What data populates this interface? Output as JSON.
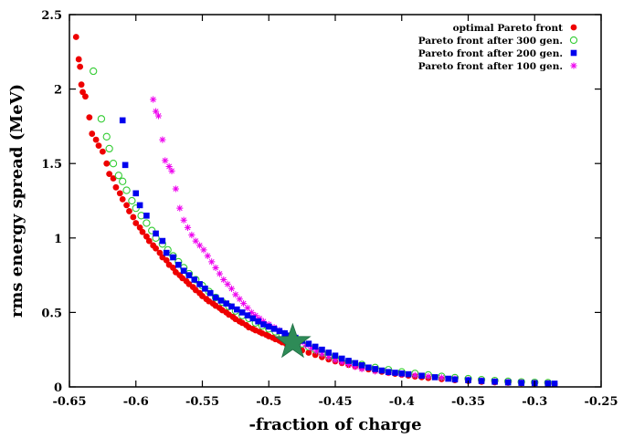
{
  "chart_data": {
    "type": "scatter",
    "title": "",
    "xlabel": "-fraction of charge",
    "ylabel": "rms energy spread (MeV)",
    "xlim": [
      -0.65,
      -0.25
    ],
    "ylim": [
      0,
      2.5
    ],
    "xticks": [
      -0.65,
      -0.6,
      -0.55,
      -0.5,
      -0.45,
      -0.4,
      -0.35,
      -0.3,
      -0.25
    ],
    "xtick_labels": [
      "-0.65",
      "-0.6",
      "-0.55",
      "-0.5",
      "-0.45",
      "-0.4",
      "-0.35",
      "-0.3",
      "-0.25"
    ],
    "yticks": [
      0,
      0.5,
      1,
      1.5,
      2,
      2.5
    ],
    "ytick_labels": [
      "0",
      "0.5",
      "1",
      "1.5",
      "2",
      "2.5"
    ],
    "grid": false,
    "legend_position": "top-right",
    "series": [
      {
        "name": "optimal Pareto front",
        "marker": "filled-circle",
        "color": "#ee0000",
        "x": [
          -0.645,
          -0.643,
          -0.642,
          -0.641,
          -0.64,
          -0.638,
          -0.635,
          -0.633,
          -0.63,
          -0.628,
          -0.625,
          -0.622,
          -0.62,
          -0.617,
          -0.615,
          -0.612,
          -0.61,
          -0.607,
          -0.605,
          -0.602,
          -0.6,
          -0.597,
          -0.595,
          -0.592,
          -0.59,
          -0.587,
          -0.585,
          -0.582,
          -0.58,
          -0.577,
          -0.575,
          -0.572,
          -0.57,
          -0.567,
          -0.565,
          -0.562,
          -0.56,
          -0.557,
          -0.555,
          -0.552,
          -0.55,
          -0.547,
          -0.545,
          -0.542,
          -0.54,
          -0.537,
          -0.535,
          -0.532,
          -0.53,
          -0.527,
          -0.525,
          -0.522,
          -0.52,
          -0.517,
          -0.515,
          -0.512,
          -0.51,
          -0.507,
          -0.505,
          -0.502,
          -0.5,
          -0.497,
          -0.495,
          -0.492,
          -0.49,
          -0.487,
          -0.485,
          -0.482,
          -0.48,
          -0.475,
          -0.47,
          -0.465,
          -0.46,
          -0.455,
          -0.45,
          -0.445,
          -0.44,
          -0.435,
          -0.43,
          -0.425,
          -0.42,
          -0.415,
          -0.41,
          -0.405,
          -0.4,
          -0.395,
          -0.39,
          -0.385,
          -0.38,
          -0.37,
          -0.36,
          -0.35,
          -0.34,
          -0.33,
          -0.32,
          -0.31,
          -0.3,
          -0.29,
          -0.285
        ],
        "y": [
          2.35,
          2.2,
          2.15,
          2.03,
          1.98,
          1.95,
          1.81,
          1.7,
          1.66,
          1.62,
          1.58,
          1.5,
          1.43,
          1.4,
          1.34,
          1.3,
          1.26,
          1.22,
          1.18,
          1.14,
          1.1,
          1.07,
          1.04,
          1.01,
          0.98,
          0.95,
          0.93,
          0.9,
          0.87,
          0.85,
          0.82,
          0.8,
          0.77,
          0.75,
          0.73,
          0.71,
          0.69,
          0.67,
          0.65,
          0.63,
          0.61,
          0.59,
          0.575,
          0.56,
          0.545,
          0.53,
          0.515,
          0.5,
          0.485,
          0.47,
          0.455,
          0.44,
          0.43,
          0.415,
          0.4,
          0.39,
          0.38,
          0.37,
          0.36,
          0.35,
          0.34,
          0.33,
          0.32,
          0.31,
          0.3,
          0.29,
          0.28,
          0.27,
          0.262,
          0.245,
          0.23,
          0.215,
          0.2,
          0.185,
          0.172,
          0.16,
          0.148,
          0.138,
          0.128,
          0.118,
          0.11,
          0.102,
          0.095,
          0.088,
          0.082,
          0.076,
          0.07,
          0.065,
          0.06,
          0.052,
          0.045,
          0.04,
          0.035,
          0.031,
          0.028,
          0.025,
          0.023,
          0.021,
          0.02
        ]
      },
      {
        "name": "Pareto front after 300 gen.",
        "marker": "open-circle",
        "color": "#33cc33",
        "x": [
          -0.632,
          -0.626,
          -0.622,
          -0.62,
          -0.617,
          -0.613,
          -0.61,
          -0.607,
          -0.603,
          -0.6,
          -0.596,
          -0.592,
          -0.588,
          -0.585,
          -0.58,
          -0.576,
          -0.572,
          -0.568,
          -0.564,
          -0.56,
          -0.555,
          -0.55,
          -0.545,
          -0.54,
          -0.535,
          -0.53,
          -0.525,
          -0.52,
          -0.515,
          -0.51,
          -0.505,
          -0.5,
          -0.495,
          -0.49,
          -0.485,
          -0.48,
          -0.475,
          -0.47,
          -0.465,
          -0.46,
          -0.455,
          -0.45,
          -0.44,
          -0.43,
          -0.42,
          -0.41,
          -0.4,
          -0.39,
          -0.38,
          -0.37,
          -0.36,
          -0.35,
          -0.34,
          -0.33,
          -0.32,
          -0.31,
          -0.3,
          -0.29
        ],
        "y": [
          2.12,
          1.8,
          1.68,
          1.6,
          1.5,
          1.42,
          1.38,
          1.32,
          1.25,
          1.2,
          1.15,
          1.1,
          1.05,
          1.0,
          0.96,
          0.92,
          0.88,
          0.84,
          0.8,
          0.76,
          0.72,
          0.68,
          0.64,
          0.6,
          0.57,
          0.54,
          0.51,
          0.48,
          0.46,
          0.43,
          0.41,
          0.39,
          0.37,
          0.35,
          0.33,
          0.31,
          0.29,
          0.27,
          0.25,
          0.23,
          0.21,
          0.195,
          0.17,
          0.15,
          0.13,
          0.115,
          0.1,
          0.09,
          0.08,
          0.07,
          0.062,
          0.055,
          0.048,
          0.042,
          0.037,
          0.033,
          0.03,
          0.028
        ]
      },
      {
        "name": "Pareto front after 200 gen.",
        "marker": "filled-square",
        "color": "#0000ee",
        "x": [
          -0.61,
          -0.608,
          -0.6,
          -0.597,
          -0.592,
          -0.585,
          -0.58,
          -0.577,
          -0.572,
          -0.568,
          -0.564,
          -0.56,
          -0.556,
          -0.552,
          -0.548,
          -0.544,
          -0.54,
          -0.536,
          -0.532,
          -0.528,
          -0.524,
          -0.52,
          -0.516,
          -0.512,
          -0.508,
          -0.504,
          -0.5,
          -0.496,
          -0.492,
          -0.488,
          -0.484,
          -0.48,
          -0.475,
          -0.47,
          -0.465,
          -0.46,
          -0.455,
          -0.45,
          -0.445,
          -0.44,
          -0.435,
          -0.43,
          -0.425,
          -0.42,
          -0.415,
          -0.41,
          -0.405,
          -0.4,
          -0.395,
          -0.385,
          -0.375,
          -0.365,
          -0.36,
          -0.35,
          -0.34,
          -0.33,
          -0.32,
          -0.31,
          -0.3,
          -0.29,
          -0.285
        ],
        "y": [
          1.79,
          1.49,
          1.3,
          1.22,
          1.15,
          1.03,
          0.98,
          0.9,
          0.87,
          0.82,
          0.78,
          0.75,
          0.72,
          0.69,
          0.66,
          0.63,
          0.6,
          0.58,
          0.56,
          0.54,
          0.52,
          0.5,
          0.48,
          0.46,
          0.44,
          0.42,
          0.405,
          0.39,
          0.375,
          0.36,
          0.345,
          0.33,
          0.31,
          0.29,
          0.27,
          0.25,
          0.23,
          0.21,
          0.19,
          0.175,
          0.16,
          0.145,
          0.13,
          0.12,
          0.11,
          0.1,
          0.095,
          0.09,
          0.085,
          0.075,
          0.065,
          0.055,
          0.05,
          0.045,
          0.04,
          0.035,
          0.03,
          0.027,
          0.025,
          0.023,
          0.022
        ]
      },
      {
        "name": "Pareto front after 100 gen.",
        "marker": "asterisk",
        "color": "#ee00ee",
        "x": [
          -0.587,
          -0.585,
          -0.583,
          -0.58,
          -0.578,
          -0.575,
          -0.573,
          -0.57,
          -0.567,
          -0.564,
          -0.561,
          -0.558,
          -0.555,
          -0.552,
          -0.549,
          -0.546,
          -0.543,
          -0.54,
          -0.537,
          -0.534,
          -0.531,
          -0.528,
          -0.525,
          -0.522,
          -0.519,
          -0.516,
          -0.513,
          -0.51,
          -0.507,
          -0.504,
          -0.5,
          -0.496,
          -0.492,
          -0.488,
          -0.484,
          -0.48,
          -0.476,
          -0.472,
          -0.468,
          -0.464,
          -0.46,
          -0.455,
          -0.45,
          -0.445,
          -0.44,
          -0.435,
          -0.43,
          -0.42,
          -0.41,
          -0.4,
          -0.39,
          -0.38,
          -0.37,
          -0.36,
          -0.35,
          -0.34,
          -0.33,
          -0.32,
          -0.31,
          -0.3,
          -0.29
        ],
        "y": [
          1.93,
          1.85,
          1.82,
          1.66,
          1.52,
          1.48,
          1.45,
          1.33,
          1.2,
          1.12,
          1.07,
          1.02,
          0.98,
          0.95,
          0.92,
          0.88,
          0.84,
          0.8,
          0.76,
          0.72,
          0.69,
          0.66,
          0.62,
          0.59,
          0.56,
          0.53,
          0.5,
          0.48,
          0.46,
          0.44,
          0.42,
          0.4,
          0.38,
          0.36,
          0.34,
          0.32,
          0.3,
          0.28,
          0.26,
          0.24,
          0.22,
          0.2,
          0.18,
          0.165,
          0.15,
          0.135,
          0.12,
          0.105,
          0.095,
          0.085,
          0.078,
          0.07,
          0.062,
          0.055,
          0.048,
          0.042,
          0.037,
          0.033,
          0.03,
          0.027,
          0.025
        ]
      }
    ],
    "annotations": [
      {
        "marker": "star",
        "color": "#2e8b57",
        "x": -0.482,
        "y": 0.3
      }
    ]
  }
}
